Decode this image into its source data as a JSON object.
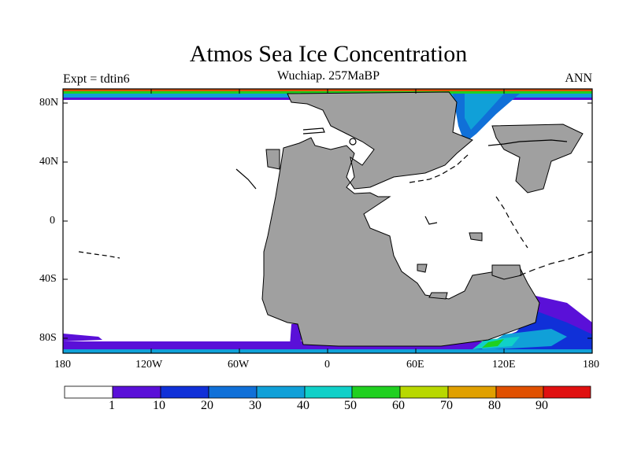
{
  "title": "Atmos Sea Ice Concentration",
  "subtitle": "Wuchiap. 257MaBP",
  "left_label": "Expt = tdtin6",
  "right_label": "ANN",
  "axes": {
    "y_ticks": [
      "80N",
      "40N",
      "0",
      "40S",
      "80S"
    ],
    "x_ticks": [
      "180",
      "120W",
      "60W",
      "0",
      "60E",
      "120E",
      "180"
    ]
  },
  "colorbar": {
    "colors": [
      "#ffffff",
      "#5a10d8",
      "#1030d8",
      "#1070d8",
      "#10a0d8",
      "#10d0c8",
      "#20d020",
      "#b8d800",
      "#e0a000",
      "#e05000",
      "#e01010"
    ],
    "labels": [
      "1",
      "10",
      "20",
      "30",
      "40",
      "50",
      "60",
      "70",
      "80",
      "90"
    ]
  },
  "colors": {
    "land": "#a0a0a0",
    "ocean": "#ffffff",
    "coast": "#000000"
  }
}
